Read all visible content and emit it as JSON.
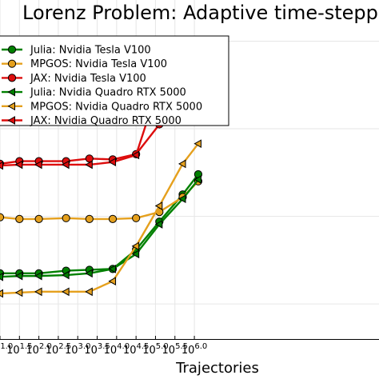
{
  "chart_data": {
    "type": "line",
    "title": "Lorenz Problem: Adaptive time-stepp",
    "xlabel": "Trajectories",
    "ylabel": "",
    "x_scale": "log10",
    "y_scale": "log10",
    "xlim": [
      1,
      10.75
    ],
    "ylim": [
      -3.4,
      0.47
    ],
    "grid": true,
    "legend_position": "top-left",
    "xticks": [
      {
        "value": 1,
        "base": "10",
        "exp": "1.0"
      },
      {
        "value": 1.5,
        "base": "10",
        "exp": "1.5"
      },
      {
        "value": 2,
        "base": "10",
        "exp": "2.0"
      },
      {
        "value": 2.5,
        "base": "10",
        "exp": "2.5"
      },
      {
        "value": 3,
        "base": "10",
        "exp": "3.0"
      },
      {
        "value": 3.5,
        "base": "10",
        "exp": "3.5"
      },
      {
        "value": 4,
        "base": "10",
        "exp": "4.0"
      },
      {
        "value": 4.5,
        "base": "10",
        "exp": "4.5"
      },
      {
        "value": 5,
        "base": "10",
        "exp": "5.0"
      },
      {
        "value": 5.5,
        "base": "10",
        "exp": "5.5"
      },
      {
        "value": 6,
        "base": "10",
        "exp": "6.0"
      }
    ],
    "series": [
      {
        "name": "Julia: Nvidia Tesla V100",
        "color": "#008000",
        "marker": "circle",
        "x": [
          1,
          1.5,
          2,
          2.7,
          3.3,
          3.9,
          4.5,
          5.1,
          5.7,
          6.1
        ],
        "y": [
          -2.65,
          -2.65,
          -2.65,
          -2.62,
          -2.61,
          -2.6,
          -2.38,
          -2.06,
          -1.75,
          -1.52
        ]
      },
      {
        "name": "MPGOS: Nvidia Tesla V100",
        "color": "#e5a01d",
        "marker": "circle",
        "x": [
          1,
          1.5,
          2,
          2.7,
          3.3,
          3.9,
          4.5,
          5.1,
          5.7,
          6.1
        ],
        "y": [
          -2.01,
          -2.03,
          -2.03,
          -2.02,
          -2.03,
          -2.03,
          -2.02,
          -1.95,
          -1.78,
          -1.6
        ]
      },
      {
        "name": "JAX: Nvidia Tesla V100",
        "color": "#dd0d0d",
        "marker": "circle",
        "x": [
          1,
          1.5,
          2,
          2.7,
          3.3,
          3.9,
          4.5,
          5.1,
          5.7,
          6.1
        ],
        "y": [
          -1.4,
          -1.37,
          -1.37,
          -1.37,
          -1.34,
          -1.35,
          -1.29,
          -0.95,
          -0.62,
          -0.36
        ]
      },
      {
        "name": "Julia: Nvidia Quadro RTX 5000",
        "color": "#008000",
        "marker": "triangle-left",
        "x": [
          1,
          1.5,
          2,
          2.7,
          3.3,
          3.9,
          4.5,
          5.1,
          5.7,
          6.1
        ],
        "y": [
          -2.69,
          -2.68,
          -2.68,
          -2.67,
          -2.65,
          -2.6,
          -2.43,
          -2.09,
          -1.8,
          -1.58
        ]
      },
      {
        "name": "MPGOS: Nvidia Quadro RTX 5000",
        "color": "#e5a01d",
        "marker": "triangle-left",
        "x": [
          1,
          1.5,
          2,
          2.7,
          3.3,
          3.9,
          4.5,
          5.1,
          5.7,
          6.1
        ],
        "y": [
          -2.88,
          -2.87,
          -2.86,
          -2.86,
          -2.86,
          -2.74,
          -2.34,
          -1.88,
          -1.4,
          -1.17
        ]
      },
      {
        "name": "JAX: Nvidia Quadro RTX 5000",
        "color": "#dd0d0d",
        "marker": "triangle-left",
        "x": [
          1,
          1.5,
          2,
          2.7,
          3.3,
          3.9,
          4.5,
          5.1,
          5.7,
          6.1
        ],
        "y": [
          -1.42,
          -1.41,
          -1.41,
          -1.41,
          -1.41,
          -1.38,
          -1.3,
          -0.48,
          -0.25,
          -0.06
        ]
      }
    ]
  }
}
